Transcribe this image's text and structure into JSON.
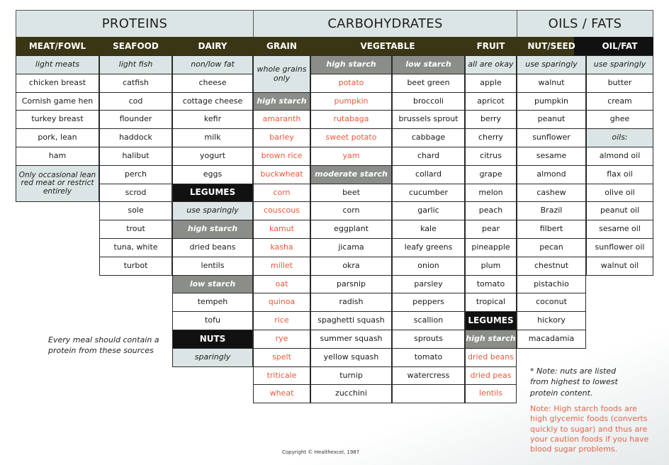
{
  "sections": {
    "proteins": "PROTEINS",
    "carbohydrates": "CARBOHYDRATES",
    "oils_fats": "OILS / FATS"
  },
  "categories": {
    "meat": "MEAT/FOWL",
    "seafood": "SEAFOOD",
    "dairy": "DAIRY",
    "grain": "GRAIN",
    "vegetable": "VEGETABLE",
    "fruit": "FRUIT",
    "nut": "NUT/SEED",
    "oil": "OIL/FAT"
  },
  "meat": {
    "sub": "light meats",
    "items": [
      "chicken breast",
      "Cornish game hen",
      "turkey breast",
      "pork, lean",
      "ham"
    ],
    "note": "Only occasional lean red meat or restrict entirely"
  },
  "seafood": {
    "sub": "light fish",
    "items": [
      "catfish",
      "cod",
      "flounder",
      "haddock",
      "halibut",
      "perch",
      "scrod",
      "sole",
      "trout",
      "tuna, white",
      "turbot"
    ]
  },
  "dairy": {
    "sub": "non/low fat",
    "items": [
      "cheese",
      "cottage cheese",
      "kefir",
      "milk",
      "yogurt",
      "eggs"
    ],
    "legumes_label": "LEGUMES",
    "legumes_sub": "use sparingly",
    "high_starch": "high starch",
    "high_items": [
      "dried beans",
      "lentils"
    ],
    "low_starch": "low starch",
    "low_items": [
      "tempeh",
      "tofu"
    ],
    "nuts_label": "NUTS",
    "nuts_sub": "sparingly"
  },
  "grain": {
    "sub": "whole grains only",
    "high_starch": "high starch",
    "items": [
      "amaranth",
      "barley",
      "brown rice",
      "buckwheat",
      "corn",
      "couscous",
      "kamut",
      "kasha",
      "millet",
      "oat",
      "quinoa",
      "rice",
      "rye",
      "spelt",
      "triticale",
      "wheat"
    ]
  },
  "veg_high": {
    "sub": "high starch",
    "items": [
      "potato",
      "pumpkin",
      "rutabaga",
      "sweet potato",
      "yam"
    ],
    "moderate": "moderate starch",
    "moderate_items": [
      "beet",
      "corn",
      "eggplant",
      "jicama",
      "okra",
      "parsnip",
      "radish",
      "spaghetti squash",
      "summer squash",
      "yellow squash",
      "turnip",
      "zucchini"
    ]
  },
  "veg_low": {
    "sub": "low starch",
    "items": [
      "beet green",
      "broccoli",
      "brussels sprout",
      "cabbage",
      "chard",
      "collard",
      "cucumber",
      "garlic",
      "kale",
      "leafy greens",
      "onion",
      "parsley",
      "peppers",
      "scallion",
      "sprouts",
      "tomato",
      "watercress",
      ""
    ]
  },
  "fruit": {
    "sub": "all are okay",
    "items": [
      "apple",
      "apricot",
      "berry",
      "cherry",
      "citrus",
      "grape",
      "melon",
      "peach",
      "pear",
      "pineapple",
      "plum",
      "tomato",
      "tropical"
    ],
    "legumes_label": "LEGUMES",
    "high_starch": "high starch",
    "legume_items": [
      "dried beans",
      "dried peas",
      "lentils"
    ]
  },
  "nut": {
    "sub": "use sparingly",
    "items": [
      "walnut",
      "pumpkin",
      "peanut",
      "sunflower",
      "sesame",
      "almond",
      "cashew",
      "Brazil",
      "filbert",
      "pecan",
      "chestnut",
      "pistachio",
      "coconut",
      "hickory",
      "macadamia"
    ]
  },
  "oil": {
    "sub": "use sparingly",
    "items": [
      "butter",
      "cream",
      "ghee"
    ],
    "oils_label": "oils:",
    "oil_items": [
      "almond oil",
      "flax oil",
      "olive oil",
      "peanut oil",
      "sesame oil",
      "sunflower oil",
      "walnut oil"
    ]
  },
  "notes": {
    "protein": "Every meal should contain a protein from these sources",
    "nuts": "* Note: nuts are listed from highest to lowest protein content.",
    "starch": "Note: High starch foods are high glycemic foods (converts quickly to sugar) and thus are your caution foods if you have blood sugar problems.",
    "copyright": "Copyright © Healthexcel, 1987"
  }
}
